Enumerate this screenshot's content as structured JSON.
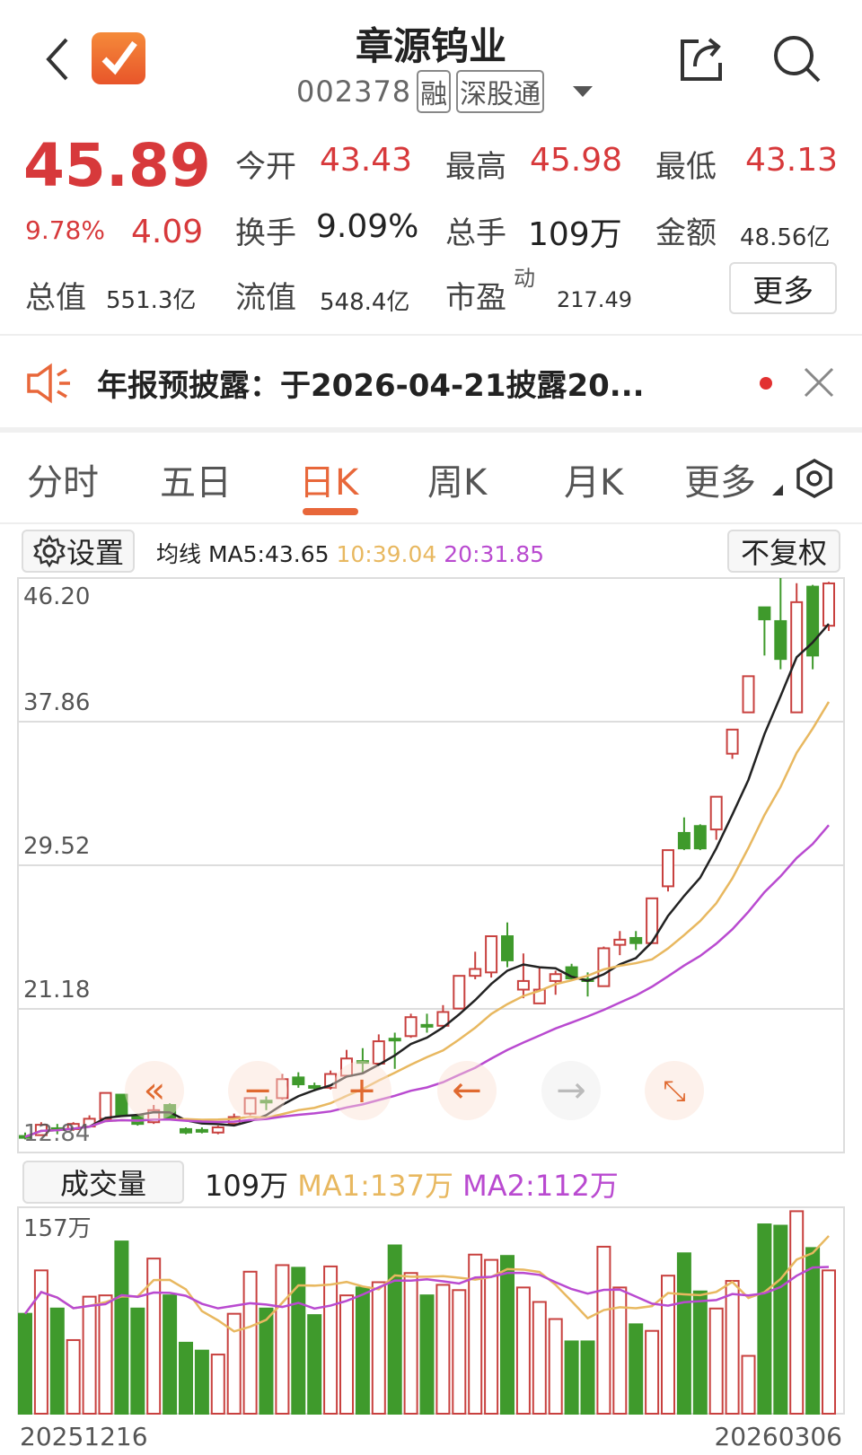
{
  "header": {
    "title": "章源钨业",
    "code": "002378",
    "tags": [
      "融",
      "深股通"
    ],
    "icons": [
      "chevron-left-icon",
      "app-logo-check-icon",
      "share-icon",
      "search-icon",
      "dropdown-triangle-icon"
    ]
  },
  "quote": {
    "price": "45.89",
    "change_pct": "9.78%",
    "change": "4.09",
    "open_label": "今开",
    "open": "43.43",
    "high_label": "最高",
    "high": "45.98",
    "low_label": "最低",
    "low": "43.13",
    "turnover_label": "换手",
    "turnover": "9.09%",
    "volume_label": "总手",
    "volume": "109万",
    "amount_label": "金额",
    "amount": "48.56亿",
    "mktcap_label": "总值",
    "mktcap": "551.3亿",
    "float_label": "流值",
    "float": "548.4亿",
    "pe_label": "市盈",
    "pe_sup": "动",
    "pe": "217.49",
    "more_label": "更多"
  },
  "notice": {
    "text": "年报预披露：于2026-04-21披露20...",
    "icons": [
      "speaker-icon",
      "red-dot-icon",
      "close-icon"
    ]
  },
  "tabs": [
    {
      "label": "分时",
      "active": false
    },
    {
      "label": "五日",
      "active": false
    },
    {
      "label": "日K",
      "active": true
    },
    {
      "label": "周K",
      "active": false
    },
    {
      "label": "月K",
      "active": false
    },
    {
      "label": "更多",
      "active": false
    }
  ],
  "ma_bar": {
    "settings_label": "设置",
    "ma_label": "均线",
    "ma5": "MA5:43.65",
    "ma10": "10:39.04",
    "ma20": "20:31.85",
    "adjust_label": "不复权"
  },
  "volume_bar": {
    "label": "成交量",
    "current": "109万",
    "ma1": "MA1:137万",
    "ma2": "MA2:112万",
    "max_label": "157万"
  },
  "dates": {
    "start": "20251216",
    "end": "20260306"
  },
  "colors": {
    "up": "#c8413f",
    "down": "#3f9a2c",
    "ma5": "#222222",
    "ma10": "#e8b860",
    "ma20": "#b94ad0",
    "accent": "#e8673a",
    "price_red": "#d7393b"
  },
  "overlay_buttons": [
    "rewind-icon",
    "zoom-out-icon",
    "zoom-in-icon",
    "arrow-left-icon",
    "arrow-right-icon",
    "expand-icon"
  ],
  "chart_data": [
    {
      "type": "candlestick",
      "y_ticks": [
        "46.20",
        "37.86",
        "29.52",
        "21.18",
        "12.84"
      ],
      "ylim": [
        12.84,
        46.2
      ],
      "grid": true,
      "ohlc": [
        [
          13.8,
          14.0,
          13.6,
          13.75
        ],
        [
          13.85,
          14.6,
          13.8,
          14.45
        ],
        [
          14.25,
          14.5,
          13.9,
          14.2
        ],
        [
          14.2,
          14.6,
          14.1,
          14.5
        ],
        [
          14.35,
          15.0,
          14.3,
          14.8
        ],
        [
          14.8,
          16.3,
          14.8,
          16.3
        ],
        [
          16.2,
          16.2,
          14.9,
          15.0
        ],
        [
          15.0,
          15.1,
          14.4,
          14.5
        ],
        [
          14.6,
          15.6,
          14.5,
          15.3
        ],
        [
          15.6,
          15.7,
          14.7,
          14.75
        ],
        [
          14.2,
          14.3,
          13.9,
          14.0
        ],
        [
          14.15,
          14.3,
          13.95,
          14.1
        ],
        [
          14.0,
          14.4,
          13.9,
          14.3
        ],
        [
          14.5,
          15.1,
          14.4,
          14.9
        ],
        [
          15.1,
          16.0,
          15.0,
          16.0
        ],
        [
          15.85,
          16.1,
          15.3,
          15.75
        ],
        [
          16.0,
          17.4,
          15.9,
          17.1
        ],
        [
          17.2,
          17.5,
          16.6,
          16.8
        ],
        [
          16.7,
          16.9,
          16.4,
          16.65
        ],
        [
          16.6,
          17.6,
          16.5,
          17.4
        ],
        [
          17.3,
          18.8,
          17.2,
          18.3
        ],
        [
          18.15,
          18.9,
          17.4,
          18.05
        ],
        [
          18.0,
          19.7,
          17.9,
          19.3
        ],
        [
          19.45,
          19.8,
          17.7,
          19.35
        ],
        [
          19.6,
          20.9,
          19.5,
          20.7
        ],
        [
          20.25,
          20.9,
          19.8,
          20.15
        ],
        [
          20.2,
          21.4,
          20.1,
          21.0
        ],
        [
          21.2,
          23.1,
          21.2,
          23.1
        ],
        [
          23.1,
          24.5,
          22.9,
          23.5
        ],
        [
          23.3,
          25.4,
          23.0,
          25.4
        ],
        [
          25.4,
          26.2,
          23.6,
          24.0
        ],
        [
          22.3,
          24.4,
          21.8,
          22.8
        ],
        [
          21.5,
          23.6,
          21.5,
          22.3
        ],
        [
          22.8,
          23.4,
          22.0,
          23.2
        ],
        [
          23.6,
          23.8,
          22.8,
          22.95
        ],
        [
          22.9,
          23.3,
          21.9,
          22.8
        ],
        [
          22.5,
          24.8,
          22.5,
          24.7
        ],
        [
          24.9,
          25.7,
          24.3,
          25.2
        ],
        [
          25.3,
          25.7,
          24.6,
          25.0
        ],
        [
          25.0,
          27.6,
          25.0,
          27.6
        ],
        [
          28.3,
          30.4,
          28.0,
          30.4
        ],
        [
          31.4,
          32.3,
          30.4,
          30.5
        ],
        [
          31.8,
          31.9,
          30.4,
          30.5
        ],
        [
          31.6,
          33.5,
          31.0,
          33.5
        ],
        [
          36.0,
          37.4,
          35.7,
          37.4
        ],
        [
          38.4,
          40.5,
          38.4,
          40.5
        ],
        [
          44.5,
          44.5,
          41.7,
          43.8
        ],
        [
          43.7,
          46.2,
          40.9,
          41.5
        ],
        [
          38.4,
          45.9,
          38.4,
          44.8
        ],
        [
          45.7,
          45.8,
          40.9,
          41.7
        ],
        [
          43.43,
          45.98,
          43.13,
          45.89
        ]
      ],
      "ma_periods": [
        5,
        10,
        20
      ]
    },
    {
      "type": "bar",
      "unit": "万",
      "ylim": [
        0,
        157
      ],
      "values": [
        76,
        109,
        80,
        56,
        89,
        90,
        131,
        80,
        118,
        90,
        54,
        48,
        45,
        76,
        108,
        80,
        113,
        111,
        75,
        112,
        90,
        96,
        100,
        128,
        107,
        90,
        98,
        94,
        121,
        117,
        120,
        96,
        85,
        72,
        55,
        55,
        127,
        96,
        68,
        63,
        105,
        122,
        93,
        80,
        101,
        44,
        144,
        143,
        154,
        126,
        109
      ],
      "ma_periods": [
        5,
        10
      ]
    }
  ]
}
